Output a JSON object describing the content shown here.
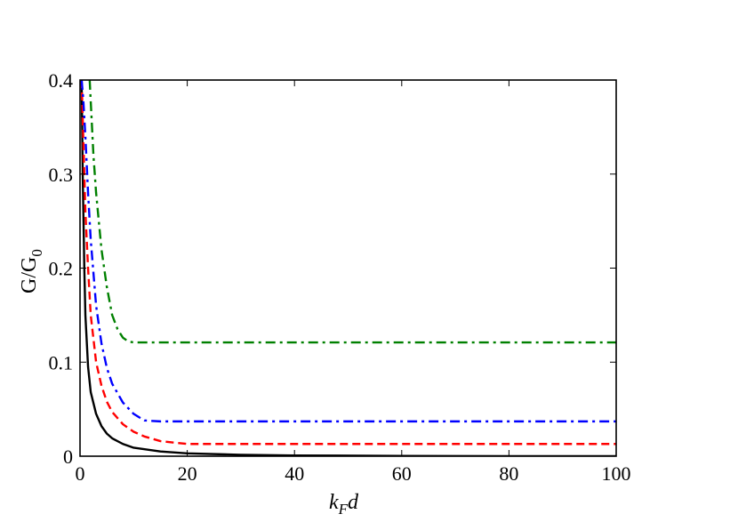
{
  "chart_data": {
    "type": "line",
    "xlabel_main": "k",
    "xlabel_sub": "F",
    "xlabel_tail": "d",
    "ylabel_main": "G/G",
    "ylabel_sub": "0",
    "xlim": [
      0,
      100
    ],
    "ylim": [
      0,
      0.4
    ],
    "xticks": [
      0,
      20,
      40,
      60,
      80,
      100
    ],
    "xtick_labels": [
      "0",
      "20",
      "40",
      "60",
      "80",
      "100"
    ],
    "yticks": [
      0,
      0.1,
      0.2,
      0.3,
      0.4
    ],
    "ytick_labels": [
      "0",
      "0.1",
      "0.2",
      "0.3",
      "0.4"
    ],
    "grid": false,
    "series": [
      {
        "color": "#000000",
        "style": "solid",
        "x": [
          0.3,
          0.5,
          0.8,
          1,
          1.5,
          2,
          3,
          4,
          5,
          6,
          8,
          10,
          15,
          20,
          30,
          40,
          60,
          80,
          100
        ],
        "y": [
          0.4,
          0.3,
          0.2,
          0.15,
          0.095,
          0.068,
          0.045,
          0.032,
          0.024,
          0.019,
          0.013,
          0.009,
          0.005,
          0.003,
          0.0015,
          0.0008,
          0.0003,
          0.0001,
          0.0
        ]
      },
      {
        "color": "#ff0000",
        "style": "dashed",
        "x": [
          0.3,
          0.6,
          1,
          1.5,
          2,
          3,
          4,
          5,
          6,
          8,
          10,
          12,
          15,
          20,
          30,
          40,
          60,
          80,
          100
        ],
        "y": [
          0.4,
          0.34,
          0.26,
          0.2,
          0.15,
          0.1,
          0.075,
          0.058,
          0.047,
          0.034,
          0.026,
          0.021,
          0.016,
          0.013,
          0.013,
          0.013,
          0.013,
          0.013,
          0.013
        ]
      },
      {
        "color": "#0000ff",
        "style": "dashdot",
        "x": [
          0.3,
          0.6,
          1,
          1.5,
          2,
          3,
          4,
          5,
          6,
          8,
          10,
          12,
          15,
          20,
          30,
          40,
          60,
          80,
          100
        ],
        "y": [
          0.4,
          0.38,
          0.34,
          0.28,
          0.23,
          0.16,
          0.12,
          0.094,
          0.077,
          0.057,
          0.045,
          0.038,
          0.037,
          0.037,
          0.037,
          0.037,
          0.037,
          0.037,
          0.037
        ]
      },
      {
        "color": "#008000",
        "style": "dashdot",
        "x": [
          1.8,
          2.5,
          3,
          4,
          5,
          6,
          7,
          8,
          9,
          10,
          12,
          15,
          20,
          30,
          40,
          60,
          80,
          100
        ],
        "y": [
          0.4,
          0.32,
          0.28,
          0.22,
          0.18,
          0.15,
          0.135,
          0.126,
          0.122,
          0.121,
          0.121,
          0.121,
          0.121,
          0.121,
          0.121,
          0.121,
          0.121,
          0.121
        ]
      }
    ]
  }
}
